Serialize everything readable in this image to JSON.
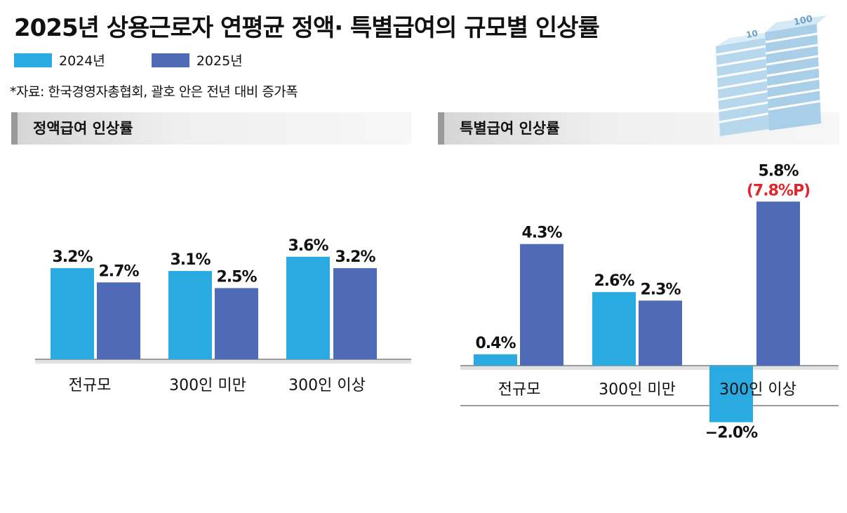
{
  "title": "2025년 상용근로자 연평균 정액· 특별급여의 규모별 인상률",
  "legend": [
    {
      "label": "2024년",
      "color": "#29abe2"
    },
    {
      "label": "2025년",
      "color": "#4f6bb8"
    }
  ],
  "source": "*자료: 한국경영자총협회, 괄호 안은 전년 대비 증가폭",
  "banknote_text": {
    "left": "10",
    "right": "100"
  },
  "chart_data": [
    {
      "type": "bar",
      "title": "정액급여 인상률",
      "categories": [
        "전규모",
        "300인 미만",
        "300인 이상"
      ],
      "series": [
        {
          "name": "2024년",
          "values": [
            3.2,
            3.1,
            3.6
          ],
          "labels": [
            "3.2%",
            "3.1%",
            "3.6%"
          ]
        },
        {
          "name": "2025년",
          "values": [
            2.7,
            2.5,
            3.2
          ],
          "labels": [
            "2.7%",
            "2.5%",
            "3.2%"
          ]
        }
      ],
      "annotations": [],
      "ylim": [
        0,
        4.8
      ],
      "grid": false,
      "legend_position": "top-left"
    },
    {
      "type": "bar",
      "title": "특별급여 인상률",
      "categories": [
        "전규모",
        "300인 미만",
        "300인 이상"
      ],
      "series": [
        {
          "name": "2024년",
          "values": [
            0.4,
            2.6,
            -2.0
          ],
          "labels": [
            "0.4%",
            "2.6%",
            "−2.0%"
          ]
        },
        {
          "name": "2025년",
          "values": [
            4.3,
            2.3,
            5.8
          ],
          "labels": [
            "4.3%",
            "2.3%",
            "5.8%"
          ]
        }
      ],
      "annotations": [
        {
          "category": "300인 이상",
          "series": "2025년",
          "text": "(7.8%P)",
          "color": "#e0262d"
        }
      ],
      "ylim": [
        -3.1,
        6.5
      ],
      "grid": false,
      "legend_position": "top-left"
    }
  ]
}
